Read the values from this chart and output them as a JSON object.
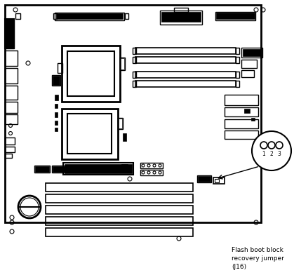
{
  "bg_color": "#ffffff",
  "border_color": "#000000",
  "annotation_text": "Flash boot block\nrecovery jumper\n(J16)"
}
